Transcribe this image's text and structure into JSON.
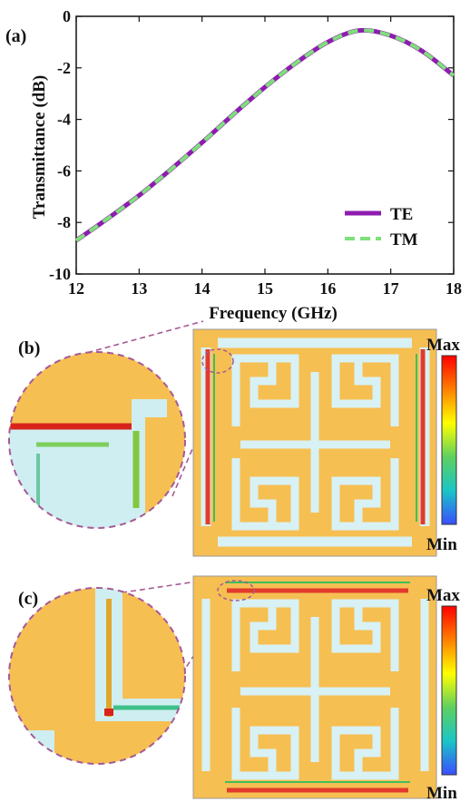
{
  "panels": {
    "a": {
      "label": "(a)"
    },
    "b": {
      "label": "(b)",
      "colorbar_max": "Max",
      "colorbar_min": "Min"
    },
    "c": {
      "label": "(c)",
      "colorbar_max": "Max",
      "colorbar_min": "Min"
    }
  },
  "colors": {
    "te": "#8e1cb0",
    "tm": "#7ee07a",
    "substrate": "#f6bf52",
    "metal": "#cfeef2",
    "zoom_circle": "#a55a96",
    "colorbar": [
      "#ff0000",
      "#ff7f00",
      "#ffff00",
      "#5fd05f",
      "#19c6c6",
      "#3a4dff"
    ]
  },
  "chart_data": {
    "type": "line",
    "title": "",
    "xlabel": "Frequency (GHz)",
    "ylabel": "Transmittance (dB)",
    "xlim": [
      12,
      18
    ],
    "ylim": [
      -10,
      0
    ],
    "xticks": [
      "12",
      "13",
      "14",
      "15",
      "16",
      "17",
      "18"
    ],
    "yticks": [
      "0",
      "-2",
      "-4",
      "-6",
      "-8",
      "-10"
    ],
    "grid": false,
    "legend_position": "bottom-right",
    "x": [
      12,
      12.5,
      13,
      13.5,
      14,
      14.5,
      15,
      15.5,
      16,
      16.5,
      17,
      17.5,
      18
    ],
    "series": [
      {
        "name": "TE",
        "style": "solid",
        "values": [
          -8.7,
          -7.85,
          -6.95,
          -5.95,
          -4.9,
          -3.8,
          -2.75,
          -1.8,
          -1.0,
          -0.55,
          -0.75,
          -1.35,
          -2.3
        ]
      },
      {
        "name": "TM",
        "style": "dashed",
        "values": [
          -8.7,
          -7.85,
          -6.95,
          -5.95,
          -4.9,
          -3.8,
          -2.75,
          -1.8,
          -1.0,
          -0.55,
          -0.75,
          -1.35,
          -2.3
        ]
      }
    ]
  }
}
